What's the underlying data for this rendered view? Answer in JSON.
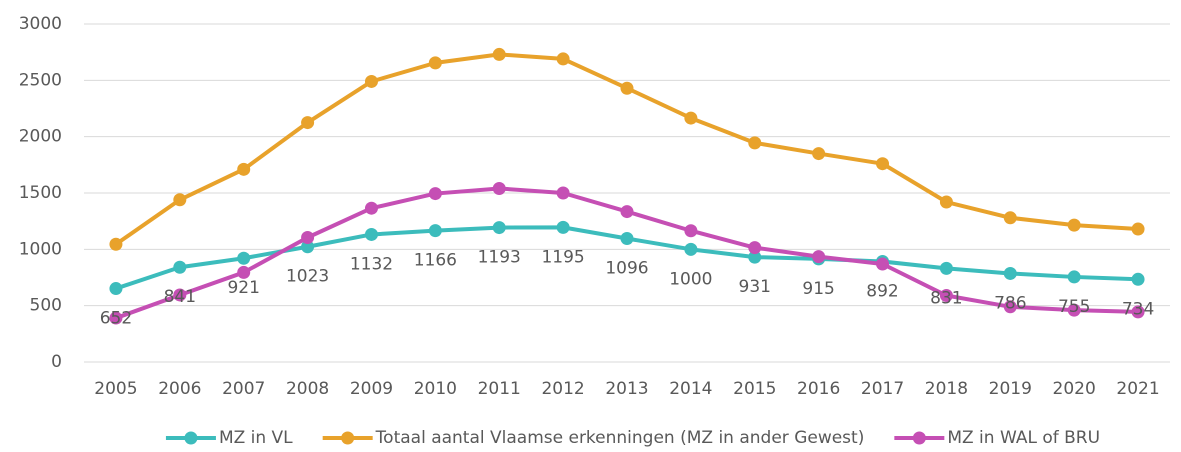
{
  "chart_data": {
    "type": "line",
    "categories": [
      "2005",
      "2006",
      "2007",
      "2008",
      "2009",
      "2010",
      "2011",
      "2012",
      "2013",
      "2014",
      "2015",
      "2016",
      "2017",
      "2018",
      "2019",
      "2020",
      "2021"
    ],
    "series": [
      {
        "name": "MZ in VL",
        "color": "#3cbcbc",
        "data_labels": true,
        "values": [
          652,
          841,
          921,
          1023,
          1132,
          1166,
          1193,
          1195,
          1096,
          1000,
          931,
          915,
          892,
          831,
          786,
          755,
          734
        ]
      },
      {
        "name": "Totaal aantal Vlaamse erkenningen (MZ in ander Gewest)",
        "color": "#e8a22b",
        "values": [
          1045,
          1440,
          1710,
          2125,
          2490,
          2655,
          2730,
          2690,
          2430,
          2165,
          1945,
          1850,
          1760,
          1420,
          1280,
          1215,
          1180
        ]
      },
      {
        "name": "MZ in WAL of BRU",
        "color": "#c54fb4",
        "values": [
          390,
          595,
          795,
          1105,
          1365,
          1495,
          1540,
          1500,
          1335,
          1165,
          1015,
          935,
          870,
          590,
          490,
          460,
          445
        ]
      }
    ],
    "ylim": [
      0,
      3000
    ],
    "yticks": [
      0,
      500,
      1000,
      1500,
      2000,
      2500,
      3000
    ],
    "grid": true,
    "legend": "bottom"
  }
}
